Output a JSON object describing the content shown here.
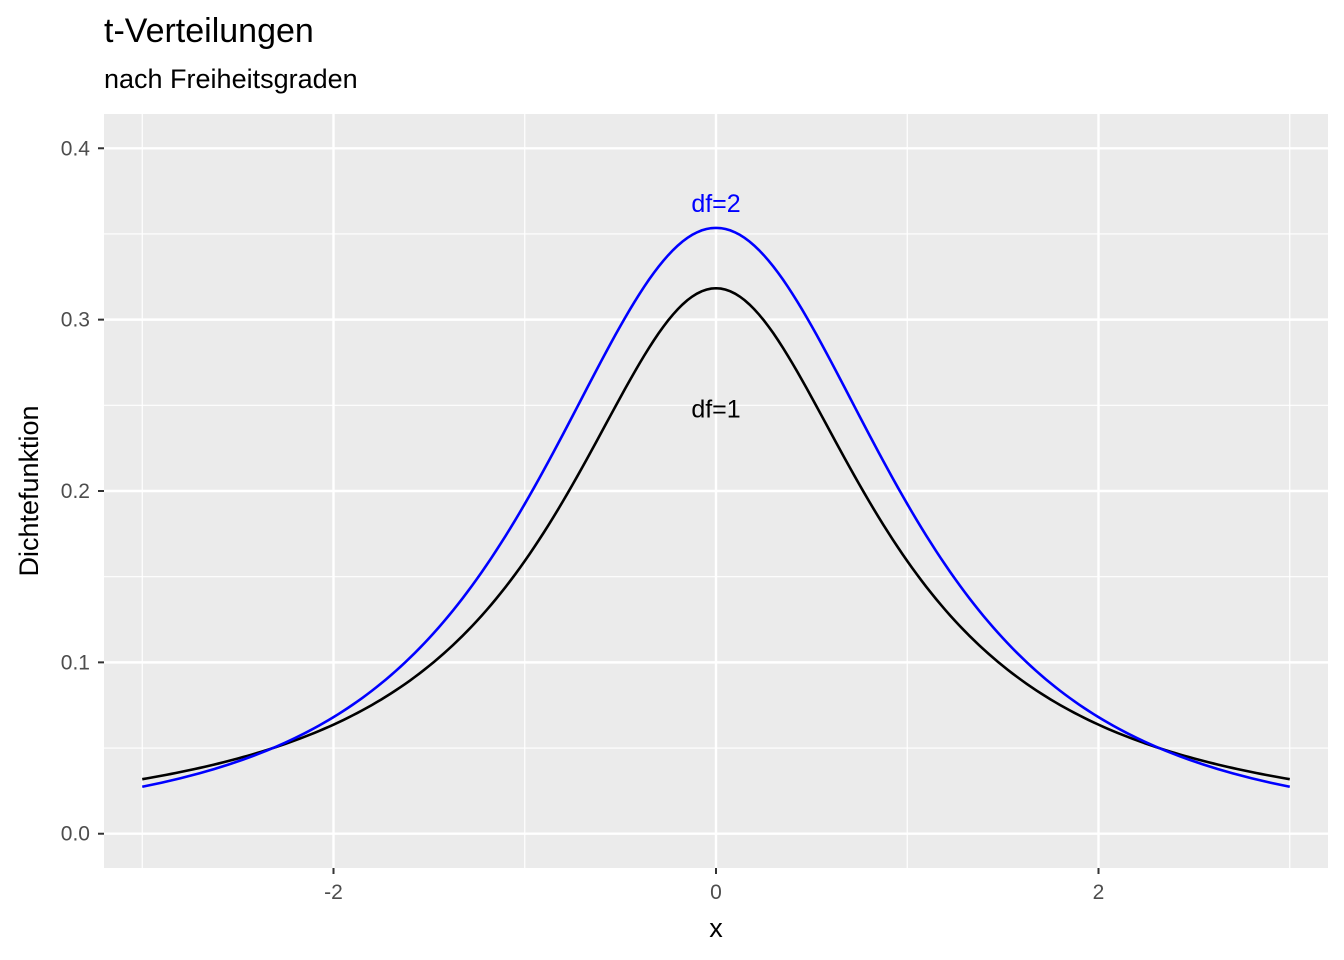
{
  "chart_data": {
    "type": "line",
    "title": "t-Verteilungen",
    "subtitle": "nach Freiheitsgraden",
    "xlabel": "x",
    "ylabel": "Dichtefunktion",
    "xlim": [
      -3.2,
      3.2
    ],
    "ylim": [
      -0.02,
      0.42
    ],
    "x_ticks": [
      -2,
      0,
      2
    ],
    "x_tick_labels": [
      "-2",
      "0",
      "2"
    ],
    "y_ticks": [
      0.0,
      0.1,
      0.2,
      0.3,
      0.4
    ],
    "y_tick_labels": [
      "0.0",
      "0.1",
      "0.2",
      "0.3",
      "0.4"
    ],
    "grid": true,
    "panel_background": "#EBEBEB",
    "x_domain": [
      -3,
      3
    ],
    "series": [
      {
        "df": 1,
        "color": "#000000",
        "x": [
          -3,
          -2.5,
          -2,
          -1.5,
          -1,
          -0.5,
          0,
          0.5,
          1,
          1.5,
          2,
          2.5,
          3
        ],
        "values": [
          0.0318,
          0.0439,
          0.0637,
          0.0979,
          0.1592,
          0.2546,
          0.3183,
          0.2546,
          0.1592,
          0.0979,
          0.0637,
          0.0439,
          0.0318
        ]
      },
      {
        "df": 2,
        "color": "#0000FF",
        "x": [
          -3,
          -2.5,
          -2,
          -1.5,
          -1,
          -0.5,
          0,
          0.5,
          1,
          1.5,
          2,
          2.5,
          3
        ],
        "values": [
          0.0274,
          0.0422,
          0.068,
          0.1136,
          0.1925,
          0.2962,
          0.3536,
          0.2962,
          0.1925,
          0.1136,
          0.068,
          0.0422,
          0.0274
        ]
      }
    ],
    "annotations": [
      {
        "text": "df=2",
        "x": 0,
        "y": 0.368,
        "color": "#0000FF"
      },
      {
        "text": "df=1",
        "x": 0,
        "y": 0.248,
        "color": "#000000"
      }
    ]
  }
}
